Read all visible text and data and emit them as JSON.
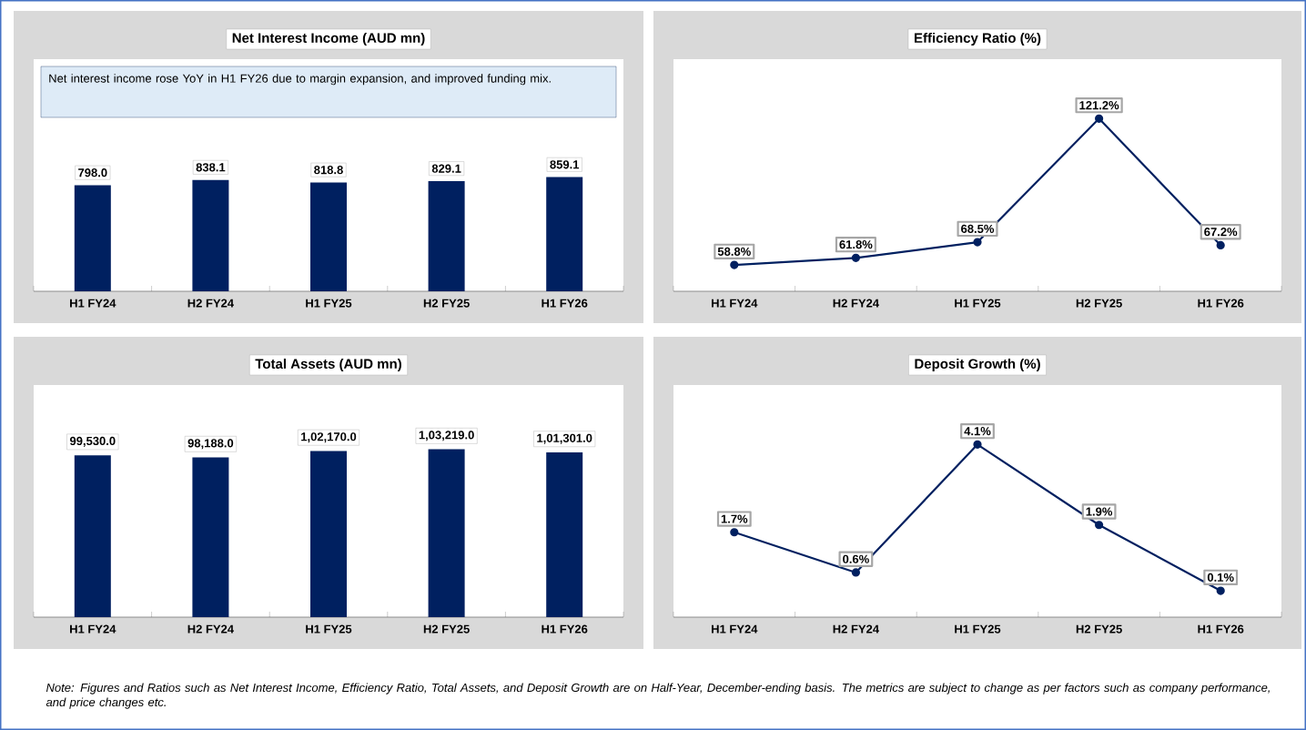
{
  "chart_data": [
    {
      "type": "bar",
      "title": "Net Interest Income (AUD mn)",
      "categories": [
        "H1 FY24",
        "H2 FY24",
        "H1 FY25",
        "H2 FY25",
        "H1 FY26"
      ],
      "values": [
        798.0,
        838.1,
        818.8,
        829.1,
        859.1
      ],
      "value_labels": [
        "798.0",
        "838.1",
        "818.8",
        "829.1",
        "859.1"
      ],
      "color": "#002060",
      "annotations": [
        "Net interest income rose YoY in H1 FY26 due to margin expansion, and improved funding mix."
      ]
    },
    {
      "type": "line",
      "title": "Efficiency Ratio (%)",
      "categories": [
        "H1 FY24",
        "H2 FY24",
        "H1 FY25",
        "H2 FY25",
        "H1 FY26"
      ],
      "values": [
        58.8,
        61.8,
        68.5,
        121.2,
        67.2
      ],
      "value_labels": [
        "58.8%",
        "61.8%",
        "68.5%",
        "121.2%",
        "67.2%"
      ],
      "color": "#002060",
      "marker": "circle"
    },
    {
      "type": "bar",
      "title": "Total Assets (AUD mn)",
      "categories": [
        "H1 FY24",
        "H2 FY24",
        "H1 FY25",
        "H2 FY25",
        "H1 FY26"
      ],
      "values": [
        99530.0,
        98188.0,
        102170.0,
        103219.0,
        101301.0
      ],
      "value_labels": [
        "99,530.0",
        "98,188.0",
        "1,02,170.0",
        "1,03,219.0",
        "1,01,301.0"
      ],
      "color": "#002060"
    },
    {
      "type": "line",
      "title": "Deposit Growth (%)",
      "categories": [
        "H1 FY24",
        "H2 FY24",
        "H1 FY25",
        "H2 FY25",
        "H1 FY26"
      ],
      "values": [
        1.7,
        0.6,
        4.1,
        1.9,
        0.1
      ],
      "value_labels": [
        "1.7%",
        "0.6%",
        "4.1%",
        "1.9%",
        "0.1%"
      ],
      "color": "#002060",
      "marker": "circle",
      "annotations": [
        "Note: Figures and Ratios such as Net Interest Income, Efficiency Ratio, Total Assets, and Deposit Growth are on Half-Year, December-ending basis. The metrics are subject to change as per factors such as company performance, and price changes etc."
      ]
    }
  ]
}
